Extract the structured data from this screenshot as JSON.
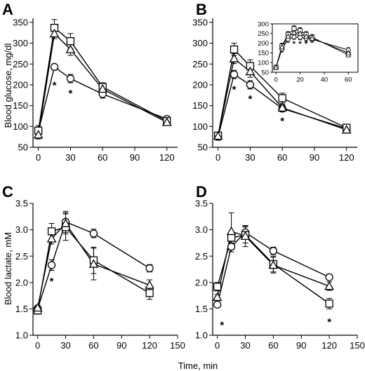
{
  "figure": {
    "xlabel": "Time, min",
    "ylabel_glucose": "Blood glucose, mg/dl",
    "ylabel_lactate": "Blood lactate, mM"
  },
  "chart_data": [
    {
      "panel": "A",
      "type": "line",
      "xticks": [
        0,
        30,
        60,
        90,
        120
      ],
      "xlim": [
        -5,
        130
      ],
      "yticks": [
        50,
        100,
        150,
        200,
        250,
        300,
        350
      ],
      "ylim": [
        50,
        360
      ],
      "series": [
        {
          "marker": "circle",
          "x": [
            0,
            15,
            30,
            60,
            120
          ],
          "y": [
            88,
            243,
            215,
            178,
            118
          ],
          "err": [
            10,
            6,
            10,
            10,
            6
          ]
        },
        {
          "marker": "square",
          "x": [
            0,
            15,
            30,
            60,
            120
          ],
          "y": [
            90,
            337,
            305,
            195,
            113
          ],
          "err": [
            12,
            20,
            18,
            10,
            6
          ]
        },
        {
          "marker": "triangle",
          "x": [
            0,
            15,
            30,
            60,
            120
          ],
          "y": [
            80,
            323,
            285,
            190,
            110
          ],
          "err": [
            10,
            12,
            14,
            10,
            6
          ]
        }
      ],
      "stars": [
        {
          "x": 15,
          "y": 203,
          "label": "*"
        },
        {
          "x": 30,
          "y": 183,
          "label": "*"
        }
      ]
    },
    {
      "panel": "B",
      "type": "line",
      "xticks": [
        0,
        30,
        60,
        90,
        120
      ],
      "xlim": [
        -5,
        130
      ],
      "yticks": [
        50,
        100,
        150,
        200,
        250,
        300,
        350
      ],
      "ylim": [
        50,
        360
      ],
      "series": [
        {
          "marker": "circle",
          "x": [
            0,
            15,
            30,
            60,
            120
          ],
          "y": [
            75,
            225,
            200,
            143,
            95
          ],
          "err": [
            8,
            10,
            10,
            8,
            6
          ]
        },
        {
          "marker": "square",
          "x": [
            0,
            15,
            30,
            60,
            120
          ],
          "y": [
            78,
            285,
            245,
            168,
            97
          ],
          "err": [
            8,
            15,
            15,
            12,
            6
          ]
        },
        {
          "marker": "triangle",
          "x": [
            0,
            15,
            30,
            60,
            120
          ],
          "y": [
            77,
            263,
            232,
            145,
            92
          ],
          "err": [
            8,
            12,
            14,
            8,
            6
          ]
        }
      ],
      "stars": [
        {
          "x": 15,
          "y": 193,
          "label": "*"
        },
        {
          "x": 30,
          "y": 170,
          "label": "*"
        },
        {
          "x": 60,
          "y": 117,
          "label": "*"
        }
      ],
      "inset": {
        "xticks": [
          0,
          20,
          40,
          60
        ],
        "xlim": [
          -3,
          68
        ],
        "yticks": [
          50,
          100,
          150,
          200,
          250,
          300
        ],
        "ylim": [
          50,
          300
        ],
        "series": [
          {
            "marker": "circle",
            "x": [
              0,
              5,
              10,
              15,
              20,
              25,
              30,
              60
            ],
            "y": [
              75,
              170,
              220,
              232,
              230,
              225,
              220,
              165
            ],
            "err": [
              5,
              15,
              15,
              12,
              12,
              15,
              15,
              12
            ]
          },
          {
            "marker": "square",
            "x": [
              0,
              5,
              10,
              15,
              20,
              25,
              30,
              60
            ],
            "y": [
              75,
              185,
              245,
              275,
              265,
              245,
              230,
              140
            ],
            "err": [
              5,
              15,
              15,
              15,
              15,
              15,
              15,
              10
            ]
          },
          {
            "marker": "triangle",
            "x": [
              0,
              5,
              10,
              15,
              20,
              25,
              30,
              60
            ],
            "y": [
              75,
              180,
              235,
              255,
              250,
              235,
              225,
              150
            ],
            "err": [
              5,
              15,
              15,
              15,
              15,
              15,
              15,
              10
            ]
          }
        ],
        "stars": [
          {
            "x": 15,
            "y": 203,
            "label": "*"
          },
          {
            "x": 20,
            "y": 203,
            "label": "*"
          },
          {
            "x": 25,
            "y": 203,
            "label": "*"
          }
        ]
      }
    },
    {
      "panel": "C",
      "type": "line",
      "xticks": [
        0,
        30,
        60,
        90,
        120,
        150
      ],
      "xlim": [
        -5,
        150
      ],
      "yticks": [
        1.0,
        1.5,
        2.0,
        2.5,
        3.0,
        3.5
      ],
      "ylim": [
        1.0,
        3.5
      ],
      "series": [
        {
          "marker": "circle",
          "x": [
            0,
            15,
            30,
            60,
            120
          ],
          "y": [
            1.5,
            2.33,
            3.15,
            2.93,
            2.27
          ],
          "err": [
            0.05,
            0.1,
            0.2,
            0.08,
            0.07
          ]
        },
        {
          "marker": "square",
          "x": [
            0,
            15,
            30,
            60,
            120
          ],
          "y": [
            1.47,
            2.97,
            3.05,
            2.42,
            1.8
          ],
          "err": [
            0.07,
            0.15,
            0.25,
            0.25,
            0.12
          ]
        },
        {
          "marker": "triangle",
          "x": [
            0,
            15,
            30,
            60,
            120
          ],
          "y": [
            1.52,
            2.83,
            3.12,
            2.35,
            1.95
          ],
          "err": [
            0.05,
            0.1,
            0.2,
            0.3,
            0.1
          ]
        }
      ],
      "stars": [
        {
          "x": 15,
          "y": 2.05,
          "label": "*"
        }
      ]
    },
    {
      "panel": "D",
      "type": "line",
      "xticks": [
        0,
        30,
        60,
        90,
        120,
        150
      ],
      "xlim": [
        -5,
        150
      ],
      "yticks": [
        1.0,
        1.5,
        2.0,
        2.5,
        3.0,
        3.5
      ],
      "ylim": [
        1.0,
        3.5
      ],
      "series": [
        {
          "marker": "circle",
          "x": [
            0,
            15,
            30,
            60,
            120
          ],
          "y": [
            1.58,
            2.68,
            2.95,
            2.6,
            2.1
          ],
          "err": [
            0.05,
            0.1,
            0.12,
            0.07,
            0.05
          ]
        },
        {
          "marker": "square",
          "x": [
            0,
            15,
            30,
            60,
            120
          ],
          "y": [
            1.92,
            2.85,
            2.9,
            2.35,
            1.6
          ],
          "err": [
            0.08,
            0.1,
            0.15,
            0.15,
            0.1
          ]
        },
        {
          "marker": "triangle",
          "x": [
            0,
            15,
            30,
            60,
            120
          ],
          "y": [
            1.72,
            2.97,
            2.88,
            2.33,
            1.93
          ],
          "err": [
            0.05,
            0.35,
            0.2,
            0.15,
            0.08
          ]
        }
      ],
      "stars": [
        {
          "x": 5,
          "y": 1.22,
          "label": "*"
        },
        {
          "x": 120,
          "y": 1.28,
          "label": "*"
        }
      ]
    }
  ]
}
